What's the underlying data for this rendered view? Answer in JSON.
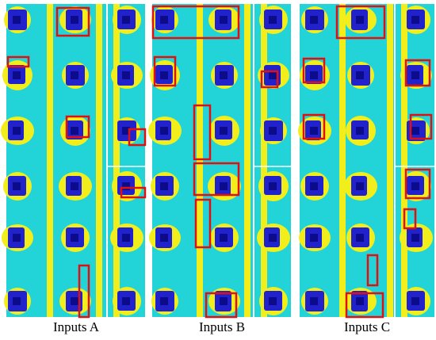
{
  "panels": [
    {
      "label": "Inputs A"
    },
    {
      "label": "Inputs B"
    },
    {
      "label": "Inputs C"
    }
  ]
}
